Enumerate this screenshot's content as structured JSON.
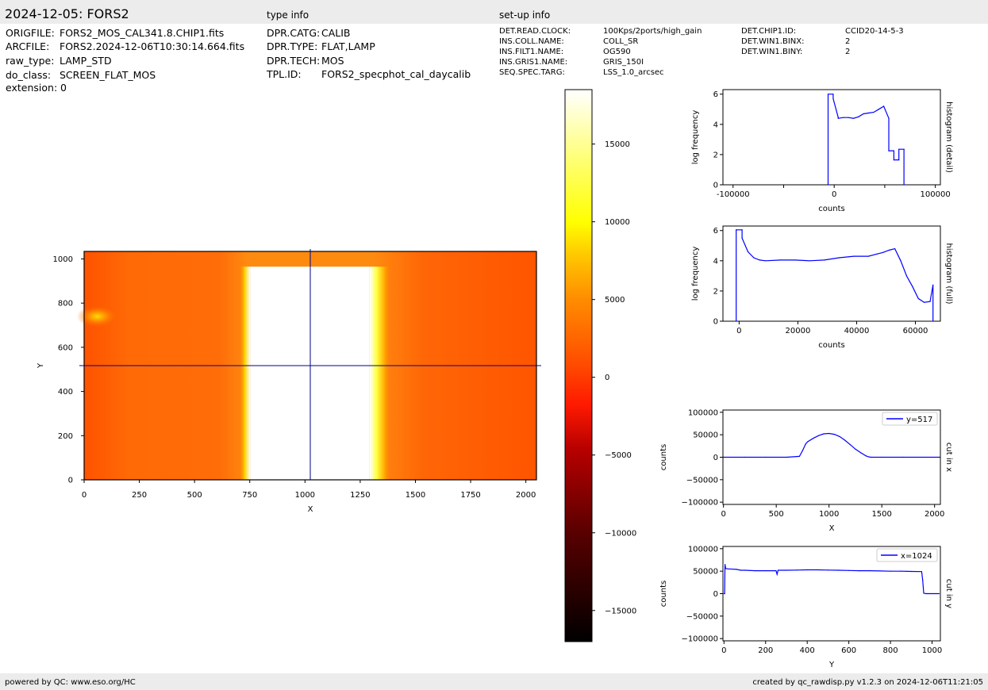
{
  "header": {
    "title": "2024-12-05: FORS2",
    "type_info_heading": "type info",
    "setup_info_heading": "set-up info"
  },
  "file_info": [
    {
      "key": "ORIGFILE:",
      "value": "FORS2_MOS_CAL341.8.CHIP1.fits"
    },
    {
      "key": "ARCFILE:",
      "value": "FORS2.2024-12-06T10:30:14.664.fits"
    },
    {
      "key": "raw_type:",
      "value": "LAMP_STD"
    },
    {
      "key": "do_class:",
      "value": "SCREEN_FLAT_MOS"
    },
    {
      "key": "extension:",
      "value": "0"
    }
  ],
  "type_info": [
    {
      "key": "DPR.CATG:",
      "value": "CALIB"
    },
    {
      "key": "DPR.TYPE:",
      "value": "FLAT,LAMP"
    },
    {
      "key": "DPR.TECH:",
      "value": "MOS"
    },
    {
      "key": "TPL.ID:",
      "value": "FORS2_specphot_cal_daycalib"
    }
  ],
  "setup_info_col1": [
    {
      "key": "DET.READ.CLOCK:",
      "value": "100Kps/2ports/high_gain"
    },
    {
      "key": "INS.COLL.NAME:",
      "value": "COLL_SR"
    },
    {
      "key": "INS.FILT1.NAME:",
      "value": "OG590"
    },
    {
      "key": "INS.GRIS1.NAME:",
      "value": "GRIS_150I"
    },
    {
      "key": "SEQ.SPEC.TARG:",
      "value": "LSS_1.0_arcsec"
    }
  ],
  "setup_info_col2": [
    {
      "key": "DET.CHIP1.ID:",
      "value": "CCID20-14-5-3"
    },
    {
      "key": "DET.WIN1.BINX:",
      "value": "2"
    },
    {
      "key": "DET.WIN1.BINY:",
      "value": "2"
    }
  ],
  "footer": {
    "left": "powered by QC: www.eso.org/HC",
    "right": "created by qc_rawdisp.py v1.2.3 on 2024-12-06T11:21:05"
  },
  "colors": {
    "line": "#0000ff",
    "cut_line": "#00008b",
    "axes": "#000000",
    "band": "#ececec"
  },
  "chart_data": [
    {
      "type": "heatmap",
      "name": "image",
      "xlabel": "X",
      "ylabel": "Y",
      "xlim": [
        0,
        2048
      ],
      "ylim": [
        0,
        1034
      ],
      "xticks": [
        0,
        250,
        500,
        750,
        1000,
        1250,
        1500,
        1750,
        2000
      ],
      "yticks": [
        0,
        200,
        400,
        600,
        800,
        1000
      ],
      "colormap": "hot",
      "bright_band_x": [
        745,
        1350
      ],
      "bright_band_ytop": 965,
      "cut_x": 1024,
      "cut_y": 517
    },
    {
      "type": "colorbar",
      "name": "colorbar",
      "range": [
        -17000,
        18500
      ],
      "ticks": [
        -15000,
        -10000,
        -5000,
        0,
        5000,
        10000,
        15000
      ],
      "tick_labels": [
        "−15000",
        "−10000",
        "−5000",
        "0",
        "5000",
        "10000",
        "15000"
      ]
    },
    {
      "type": "line",
      "name": "histogram-detail",
      "xlabel": "counts",
      "ylabel": "log frequency",
      "right_label": "histogram (detail)",
      "xlim": [
        -110000,
        105000
      ],
      "ylim": [
        0,
        6.3
      ],
      "xticks": [
        -100000,
        -50000,
        0,
        50000,
        100000
      ],
      "xtick_labels": [
        "-100000",
        "",
        "0",
        "",
        "100000"
      ],
      "yticks": [
        0,
        2,
        4,
        6
      ],
      "x": [
        -6000,
        -6000,
        -1000,
        -1000,
        4000,
        4000,
        9000,
        14000,
        19000,
        24000,
        29000,
        34000,
        39000,
        44000,
        49000,
        54000,
        54000,
        59000,
        59000,
        64000,
        64000,
        69000,
        69000
      ],
      "y": [
        0,
        6.0,
        6.0,
        5.7,
        4.45,
        4.4,
        4.45,
        4.45,
        4.4,
        4.5,
        4.7,
        4.75,
        4.8,
        5.0,
        5.2,
        4.4,
        2.25,
        2.25,
        1.65,
        1.65,
        2.35,
        2.35,
        0
      ]
    },
    {
      "type": "line",
      "name": "histogram-full",
      "xlabel": "counts",
      "ylabel": "log frequency",
      "right_label": "histogram (full)",
      "xlim": [
        -5500,
        68500
      ],
      "ylim": [
        0,
        6.3
      ],
      "xticks": [
        0,
        20000,
        40000,
        60000
      ],
      "yticks": [
        0,
        2,
        4,
        6
      ],
      "x": [
        -1000,
        -1000,
        1000,
        1000,
        3000,
        5000,
        7000,
        9000,
        14000,
        19000,
        24000,
        29000,
        34000,
        39000,
        44000,
        47000,
        49000,
        51000,
        53000,
        55000,
        57000,
        59000,
        61000,
        63000,
        65000,
        66000,
        66000
      ],
      "y": [
        0,
        6.05,
        6.05,
        5.5,
        4.6,
        4.2,
        4.05,
        4.0,
        4.05,
        4.05,
        4.0,
        4.05,
        4.2,
        4.3,
        4.3,
        4.45,
        4.55,
        4.7,
        4.8,
        4.0,
        3.0,
        2.3,
        1.5,
        1.25,
        1.3,
        2.4,
        0
      ]
    },
    {
      "type": "line",
      "name": "cut-in-x",
      "xlabel": "X",
      "ylabel": "counts",
      "right_label": "cut in x",
      "xlim": [
        -5,
        2055
      ],
      "ylim": [
        -105000,
        105000
      ],
      "xticks": [
        0,
        500,
        1000,
        1500,
        2000
      ],
      "yticks": [
        -100000,
        -50000,
        0,
        50000,
        100000
      ],
      "legend": "y=517",
      "legend_position": "top-right",
      "x": [
        0,
        200,
        400,
        600,
        720,
        750,
        780,
        800,
        850,
        900,
        950,
        1000,
        1050,
        1100,
        1150,
        1200,
        1250,
        1300,
        1350,
        1380,
        1400,
        1500,
        1700,
        2048
      ],
      "y": [
        0,
        0,
        0,
        0,
        2000,
        15000,
        30000,
        35000,
        42000,
        48000,
        52000,
        53000,
        51000,
        46000,
        38000,
        28000,
        18000,
        10000,
        3000,
        500,
        0,
        0,
        0,
        0
      ]
    },
    {
      "type": "line",
      "name": "cut-in-y",
      "xlabel": "Y",
      "ylabel": "counts",
      "right_label": "cut in y",
      "xlim": [
        -5,
        1040
      ],
      "ylim": [
        -105000,
        105000
      ],
      "xticks": [
        0,
        200,
        400,
        600,
        800,
        1000
      ],
      "yticks": [
        -100000,
        -50000,
        0,
        50000,
        100000
      ],
      "legend": "x=1024",
      "legend_position": "top-right",
      "x": [
        0,
        3,
        5,
        8,
        20,
        60,
        80,
        100,
        150,
        200,
        250,
        255,
        260,
        300,
        350,
        400,
        450,
        500,
        550,
        600,
        650,
        700,
        750,
        800,
        850,
        900,
        950,
        955,
        960,
        970,
        980,
        1034
      ],
      "y": [
        0,
        0,
        65000,
        56000,
        55000,
        54000,
        52000,
        52000,
        51000,
        51000,
        51000,
        43000,
        52000,
        52000,
        52500,
        53000,
        53000,
        52500,
        52000,
        51500,
        51000,
        51000,
        50500,
        50000,
        50000,
        49500,
        49000,
        30000,
        1000,
        0,
        0,
        0
      ]
    }
  ]
}
